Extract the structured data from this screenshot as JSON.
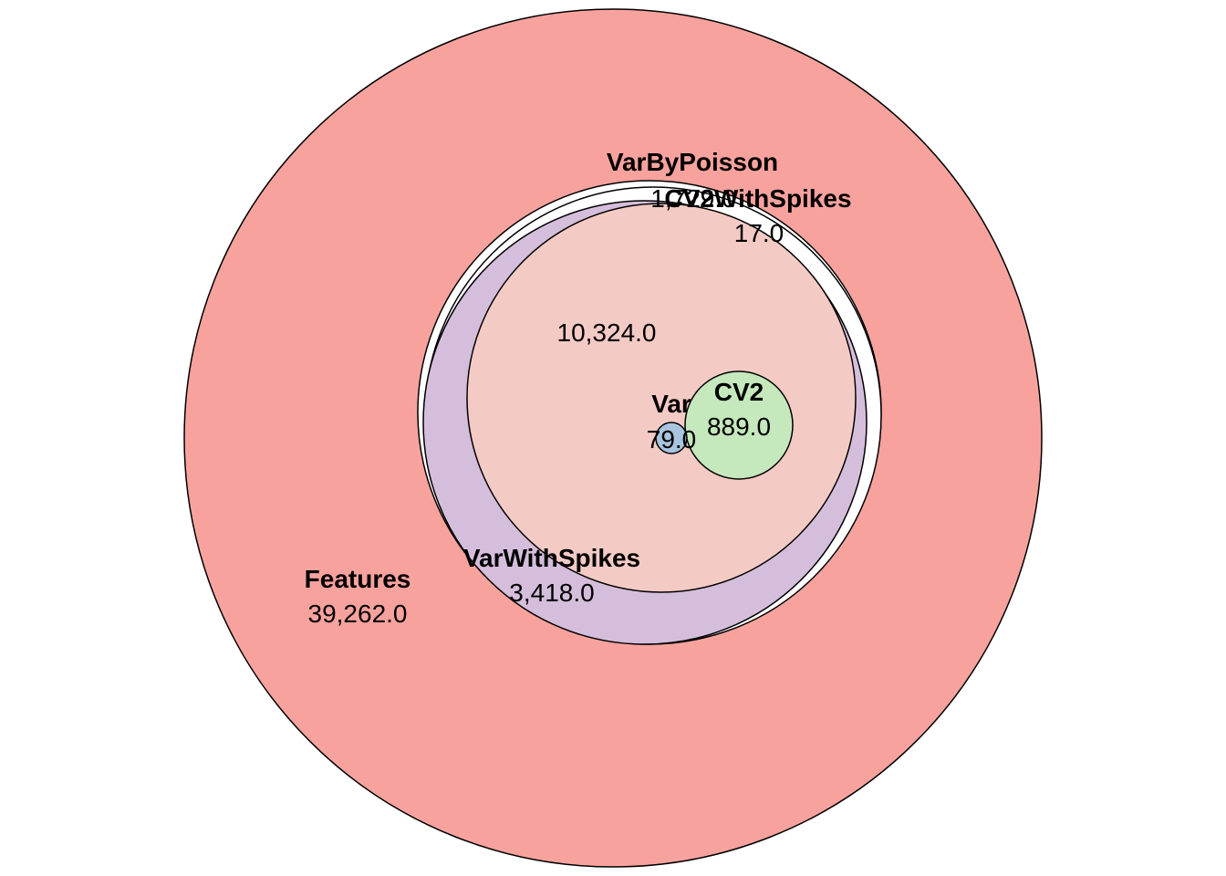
{
  "sets": {
    "features": {
      "name": "Features",
      "count": "39,262.0",
      "color": "#F8A29E"
    },
    "varbypoisson": {
      "name": "VarByPoisson",
      "count": "1,729.0",
      "color": "#FFFFFF"
    },
    "cv2withspikes": {
      "name": "CV2WithSpikes",
      "count": "17.0",
      "color": "#FFFFFF"
    },
    "varwithspikes": {
      "name": "VarWithSpikes",
      "count": "3,418.0",
      "color": "#D5BEDC"
    },
    "intersection": {
      "count": "10,324.0",
      "color": "#F4CAC4"
    },
    "var": {
      "name": "Var",
      "count": "79.0",
      "color": "#A8C4DE"
    },
    "cv2": {
      "name": "CV2",
      "count": "889.0",
      "color": "#C5E8BC"
    }
  }
}
